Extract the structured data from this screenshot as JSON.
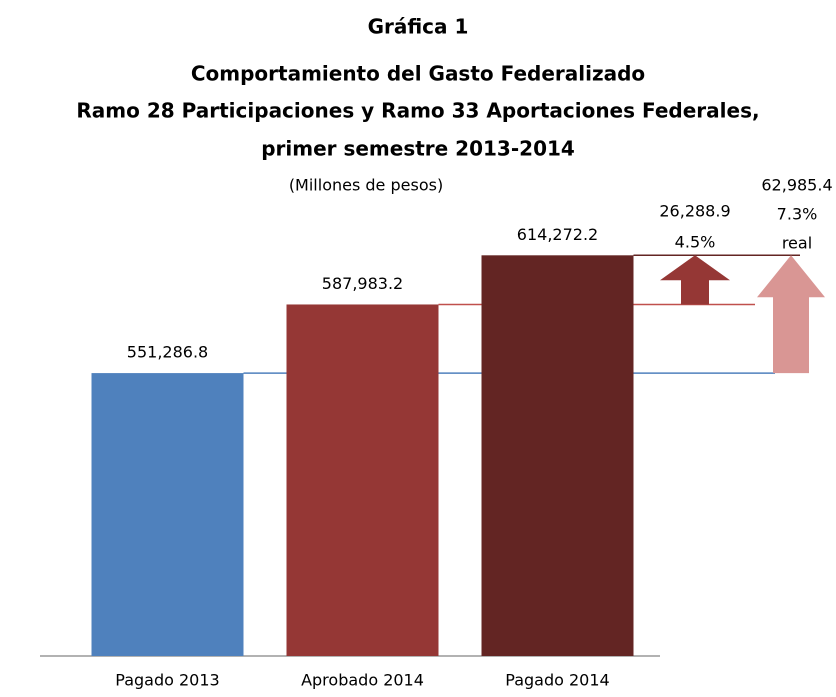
{
  "chart_data": {
    "type": "bar",
    "title": [
      "Gráfica 1",
      "Comportamiento del Gasto Federalizado",
      "Ramo 28 Participaciones y Ramo 33 Aportaciones Federales,",
      "primer semestre 2013-2014"
    ],
    "subtitle": "(Millones de pesos)",
    "categories": [
      "Pagado 2013",
      "Aprobado 2014",
      "Pagado 2014"
    ],
    "values": [
      551286.8,
      587983.2,
      614272.2
    ],
    "value_labels": [
      "551,286.8",
      "587,983.2",
      "614,272.2"
    ],
    "colors": [
      "#4f81bd",
      "#953735",
      "#632523"
    ],
    "ylim": [
      400000,
      650000
    ],
    "annotations": [
      "26,288.9",
      "4.5%",
      "62,985.4",
      "7.3%",
      "real"
    ],
    "arrow_colors": [
      "#953735",
      "#d99694"
    ]
  }
}
